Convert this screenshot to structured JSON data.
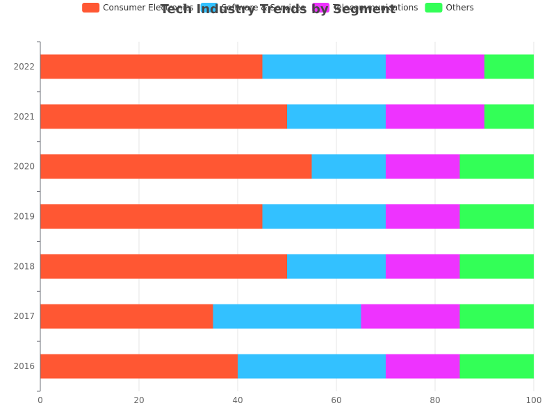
{
  "chart_data": {
    "type": "bar",
    "orientation": "horizontal",
    "stacked": true,
    "title": "Tech Industry Trends by Segment",
    "categories": [
      "2016",
      "2017",
      "2018",
      "2019",
      "2020",
      "2021",
      "2022"
    ],
    "series": [
      {
        "name": "Consumer Electronics",
        "color": "#ff5733",
        "values": [
          40,
          35,
          50,
          45,
          55,
          50,
          45
        ]
      },
      {
        "name": "Software & Services",
        "color": "#33c1ff",
        "values": [
          30,
          30,
          20,
          25,
          15,
          20,
          25
        ]
      },
      {
        "name": "Telecommunications",
        "color": "#ee33ff",
        "values": [
          15,
          20,
          15,
          15,
          15,
          20,
          20
        ]
      },
      {
        "name": "Others",
        "color": "#33ff57",
        "values": [
          15,
          15,
          15,
          15,
          15,
          10,
          10
        ]
      }
    ],
    "xlim": [
      0,
      100
    ],
    "xticks": [
      0,
      20,
      40,
      60,
      80,
      100
    ],
    "grid": true,
    "legend_position": "top-center"
  }
}
